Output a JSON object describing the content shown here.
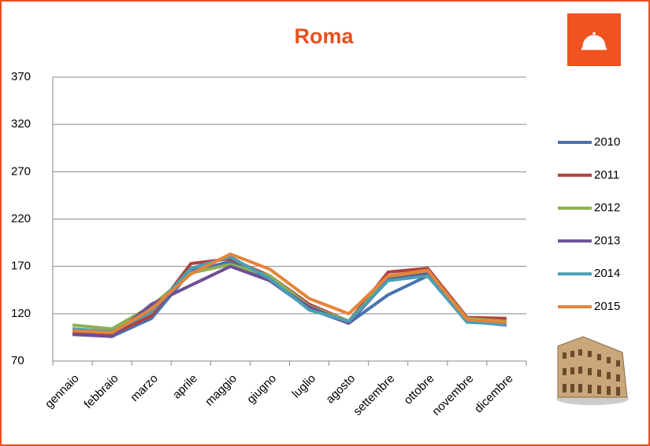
{
  "chart_data": {
    "type": "line",
    "title": "Roma",
    "categories": [
      "gennaio",
      "febbraio",
      "marzo",
      "aprile",
      "maggio",
      "giugno",
      "luglio",
      "agosto",
      "settembre",
      "ottobre",
      "novembre",
      "dicembre"
    ],
    "series": [
      {
        "name": "2010",
        "color": "#4a72b0",
        "values": [
          100,
          96,
          115,
          165,
          175,
          155,
          125,
          110,
          140,
          160,
          112,
          108
        ]
      },
      {
        "name": "2011",
        "color": "#b0413e",
        "values": [
          100,
          98,
          118,
          173,
          178,
          160,
          130,
          112,
          164,
          168,
          116,
          115
        ]
      },
      {
        "name": "2012",
        "color": "#8db051",
        "values": [
          108,
          104,
          128,
          163,
          172,
          160,
          128,
          112,
          158,
          165,
          115,
          112
        ]
      },
      {
        "name": "2013",
        "color": "#6e4f95",
        "values": [
          98,
          96,
          130,
          150,
          170,
          155,
          127,
          110,
          156,
          162,
          113,
          110
        ]
      },
      {
        "name": "2014",
        "color": "#4aa0b5",
        "values": [
          104,
          101,
          122,
          168,
          180,
          157,
          124,
          112,
          155,
          160,
          111,
          109
        ]
      },
      {
        "name": "2015",
        "color": "#e5843a",
        "values": [
          102,
          100,
          125,
          162,
          183,
          167,
          136,
          120,
          160,
          166,
          114,
          111
        ]
      }
    ],
    "ylim": [
      70,
      370
    ],
    "yticks": [
      70,
      120,
      170,
      220,
      270,
      320,
      370
    ],
    "grid": true,
    "legend": "right"
  }
}
